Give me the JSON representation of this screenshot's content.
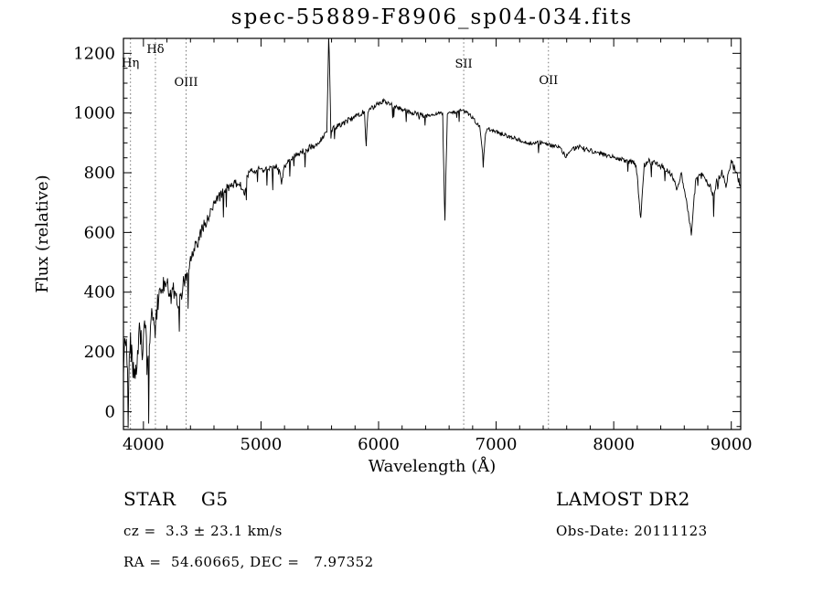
{
  "figure": {
    "footer": {
      "class_label": "STAR    G5",
      "cz": "cz =  3.3 ± 23.1 km/s",
      "radec": "RA =  54.60665, DEC =   7.97352",
      "survey": "LAMOST DR2",
      "obs_date": "Obs-Date: 20111123"
    }
  },
  "chart_data": {
    "type": "line",
    "title": "spec-55889-F8906_sp04-034.fits",
    "xlabel": "Wavelength (Å)",
    "ylabel": "Flux (relative)",
    "xlim": [
      3830,
      9080
    ],
    "ylim": [
      -60,
      1250
    ],
    "xticks": [
      4000,
      5000,
      6000,
      7000,
      8000,
      9000
    ],
    "yticks": [
      0,
      200,
      400,
      600,
      800,
      1000,
      1200
    ],
    "x_minor_step": 200,
    "y_minor_step": 50,
    "grid": false,
    "legend": false,
    "line_markers": [
      {
        "label": "Hη",
        "x": 3890,
        "dy": 31
      },
      {
        "label": "Hδ",
        "x": 4102,
        "dy": 16
      },
      {
        "label": "OIII",
        "x": 4363,
        "dy": 52
      },
      {
        "label": "SII",
        "x": 6724,
        "dy": 32
      },
      {
        "label": "OII",
        "x": 7445,
        "dy": 50
      }
    ],
    "series": [
      {
        "name": "spectrum",
        "color": "#000000",
        "sample_step": 5,
        "anchors": [
          [
            3830,
            170
          ],
          [
            3850,
            260
          ],
          [
            3870,
            90
          ],
          [
            3890,
            230
          ],
          [
            3910,
            140
          ],
          [
            3933,
            100
          ],
          [
            3950,
            210
          ],
          [
            3970,
            290
          ],
          [
            3990,
            190
          ],
          [
            4010,
            330
          ],
          [
            4030,
            240
          ],
          [
            4045,
            130
          ],
          [
            4060,
            320
          ],
          [
            4080,
            340
          ],
          [
            4101,
            270
          ],
          [
            4120,
            360
          ],
          [
            4140,
            400
          ],
          [
            4160,
            420
          ],
          [
            4180,
            430
          ],
          [
            4200,
            430
          ],
          [
            4227,
            380
          ],
          [
            4250,
            410
          ],
          [
            4280,
            390
          ],
          [
            4300,
            360
          ],
          [
            4325,
            400
          ],
          [
            4340,
            430
          ],
          [
            4360,
            440
          ],
          [
            4383,
            470
          ],
          [
            4405,
            520
          ],
          [
            4430,
            545
          ],
          [
            4455,
            565
          ],
          [
            4480,
            585
          ],
          [
            4510,
            620
          ],
          [
            4540,
            645
          ],
          [
            4570,
            665
          ],
          [
            4600,
            690
          ],
          [
            4630,
            710
          ],
          [
            4660,
            725
          ],
          [
            4690,
            740
          ],
          [
            4720,
            750
          ],
          [
            4750,
            758
          ],
          [
            4780,
            762
          ],
          [
            4810,
            768
          ],
          [
            4840,
            755
          ],
          [
            4861,
            725
          ],
          [
            4880,
            780
          ],
          [
            4900,
            795
          ],
          [
            4930,
            805
          ],
          [
            4960,
            810
          ],
          [
            5000,
            805
          ],
          [
            5040,
            818
          ],
          [
            5080,
            812
          ],
          [
            5120,
            822
          ],
          [
            5160,
            800
          ],
          [
            5175,
            765
          ],
          [
            5190,
            810
          ],
          [
            5220,
            835
          ],
          [
            5260,
            848
          ],
          [
            5300,
            858
          ],
          [
            5340,
            868
          ],
          [
            5380,
            878
          ],
          [
            5420,
            886
          ],
          [
            5460,
            893
          ],
          [
            5500,
            905
          ],
          [
            5530,
            920
          ],
          [
            5560,
            945
          ],
          [
            5577,
            1255
          ],
          [
            5595,
            945
          ],
          [
            5620,
            952
          ],
          [
            5650,
            958
          ],
          [
            5680,
            963
          ],
          [
            5710,
            968
          ],
          [
            5740,
            975
          ],
          [
            5770,
            982
          ],
          [
            5800,
            990
          ],
          [
            5840,
            998
          ],
          [
            5880,
            1005
          ],
          [
            5893,
            880
          ],
          [
            5910,
            1008
          ],
          [
            5950,
            1018
          ],
          [
            6000,
            1032
          ],
          [
            6040,
            1040
          ],
          [
            6080,
            1034
          ],
          [
            6120,
            1026
          ],
          [
            6160,
            1020
          ],
          [
            6200,
            1014
          ],
          [
            6240,
            1008
          ],
          [
            6280,
            1002
          ],
          [
            6320,
            998
          ],
          [
            6360,
            993
          ],
          [
            6400,
            990
          ],
          [
            6440,
            992
          ],
          [
            6480,
            996
          ],
          [
            6520,
            1000
          ],
          [
            6545,
            995
          ],
          [
            6563,
            640
          ],
          [
            6585,
            998
          ],
          [
            6620,
            1002
          ],
          [
            6660,
            1006
          ],
          [
            6700,
            1010
          ],
          [
            6740,
            1002
          ],
          [
            6780,
            992
          ],
          [
            6820,
            975
          ],
          [
            6860,
            955
          ],
          [
            6890,
            840
          ],
          [
            6915,
            950
          ],
          [
            6950,
            945
          ],
          [
            6990,
            940
          ],
          [
            7030,
            933
          ],
          [
            7070,
            927
          ],
          [
            7110,
            922
          ],
          [
            7150,
            916
          ],
          [
            7190,
            911
          ],
          [
            7230,
            906
          ],
          [
            7270,
            900
          ],
          [
            7310,
            894
          ],
          [
            7350,
            899
          ],
          [
            7390,
            904
          ],
          [
            7430,
            897
          ],
          [
            7470,
            892
          ],
          [
            7510,
            888
          ],
          [
            7550,
            881
          ],
          [
            7593,
            852
          ],
          [
            7630,
            875
          ],
          [
            7670,
            882
          ],
          [
            7710,
            886
          ],
          [
            7750,
            881
          ],
          [
            7790,
            876
          ],
          [
            7830,
            871
          ],
          [
            7870,
            866
          ],
          [
            7910,
            861
          ],
          [
            7950,
            856
          ],
          [
            8000,
            851
          ],
          [
            8050,
            846
          ],
          [
            8100,
            841
          ],
          [
            8150,
            836
          ],
          [
            8190,
            830
          ],
          [
            8230,
            645
          ],
          [
            8260,
            825
          ],
          [
            8300,
            838
          ],
          [
            8350,
            832
          ],
          [
            8400,
            822
          ],
          [
            8450,
            812
          ],
          [
            8500,
            790
          ],
          [
            8540,
            742
          ],
          [
            8575,
            798
          ],
          [
            8620,
            705
          ],
          [
            8660,
            592
          ],
          [
            8695,
            765
          ],
          [
            8730,
            798
          ],
          [
            8770,
            788
          ],
          [
            8810,
            762
          ],
          [
            8850,
            722
          ],
          [
            8885,
            788
          ],
          [
            8920,
            798
          ],
          [
            8955,
            762
          ],
          [
            9000,
            838
          ],
          [
            9040,
            800
          ],
          [
            9080,
            760
          ]
        ],
        "noise_profile": [
          [
            3830,
            110
          ],
          [
            4000,
            82
          ],
          [
            4200,
            58
          ],
          [
            4500,
            42
          ],
          [
            4800,
            30
          ],
          [
            5200,
            25
          ],
          [
            5600,
            20
          ],
          [
            6000,
            16
          ],
          [
            6500,
            14
          ],
          [
            7000,
            14
          ],
          [
            7500,
            15
          ],
          [
            8000,
            16
          ],
          [
            8500,
            20
          ],
          [
            9000,
            26
          ]
        ],
        "spikes": [
          [
            3872,
            -55
          ],
          [
            4047,
            -40
          ],
          [
            5577,
            1255
          ],
          [
            6563,
            640
          ],
          [
            8662,
            590
          ]
        ]
      }
    ]
  }
}
